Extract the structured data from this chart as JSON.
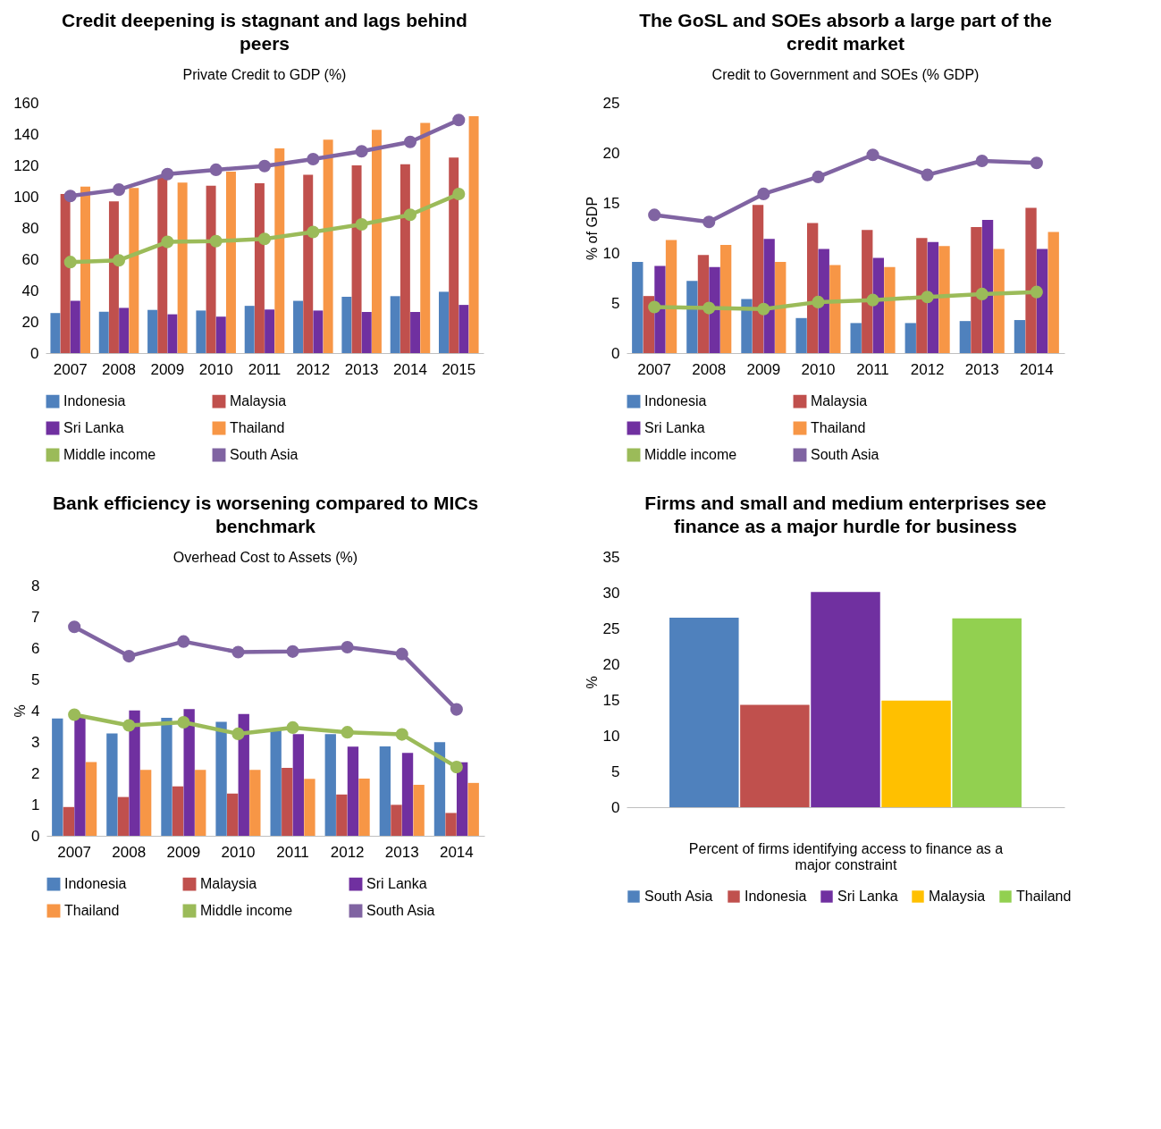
{
  "chart_data": [
    {
      "type": "bar",
      "title": "Credit deepening is stagnant and lags behind peers",
      "subtitle": "Private Credit to GDP (%)",
      "categories": [
        "2007",
        "2008",
        "2009",
        "2010",
        "2011",
        "2012",
        "2013",
        "2014",
        "2015"
      ],
      "series": [
        {
          "name": "Indonesia",
          "color": "#4f81bd",
          "values": [
            25.6,
            26.5,
            27.6,
            27.2,
            30.2,
            33.4,
            36,
            36.4,
            39.2
          ]
        },
        {
          "name": "Malaysia",
          "color": "#c0504d",
          "values": [
            101.7,
            97,
            112,
            107,
            108.6,
            114,
            120,
            120.7,
            125
          ]
        },
        {
          "name": "Sri Lanka",
          "color": "#7030a0",
          "values": [
            33.4,
            28.9,
            24.8,
            23.3,
            27.8,
            27.2,
            26.3,
            26.3,
            30.8
          ]
        },
        {
          "name": "Thailand",
          "color": "#f79646",
          "values": [
            106.5,
            105.6,
            109,
            116,
            130.8,
            136.4,
            142.7,
            147.2,
            151.5
          ]
        },
        {
          "name": "Middle income",
          "type": "line",
          "color": "#9bbb59",
          "values": [
            58.2,
            59.3,
            71.1,
            71.6,
            73,
            77.4,
            82.3,
            88.4,
            101.7
          ]
        },
        {
          "name": "South Asia",
          "type": "line",
          "color": "#8064a2",
          "values": [
            100.4,
            104.5,
            114.4,
            117.2,
            119.6,
            124,
            129,
            135,
            149
          ]
        }
      ],
      "ylim": [
        0,
        160
      ],
      "yticks": [
        0,
        20,
        40,
        60,
        80,
        100,
        120,
        140,
        160
      ],
      "legend": "bottom",
      "marker": "circle"
    },
    {
      "type": "bar",
      "title": "The GoSL and SOEs absorb a large part of the credit market",
      "subtitle": "Credit to Government and SOEs (% GDP)",
      "ylabel": "% of GDP",
      "categories": [
        "2007",
        "2008",
        "2009",
        "2010",
        "2011",
        "2012",
        "2013",
        "2014"
      ],
      "series": [
        {
          "name": "Indonesia",
          "color": "#4f81bd",
          "values": [
            9.1,
            7.2,
            5.4,
            3.5,
            3.0,
            3.0,
            3.2,
            3.3
          ]
        },
        {
          "name": "Malaysia",
          "color": "#c0504d",
          "values": [
            5.7,
            9.8,
            14.8,
            13.0,
            12.3,
            11.5,
            12.6,
            14.5
          ]
        },
        {
          "name": "Sri Lanka",
          "color": "#7030a0",
          "values": [
            8.7,
            8.6,
            11.4,
            10.4,
            9.5,
            11.1,
            13.3,
            10.4
          ]
        },
        {
          "name": "Thailand",
          "color": "#f79646",
          "values": [
            11.3,
            10.8,
            9.1,
            8.8,
            8.6,
            10.7,
            10.4,
            12.1
          ]
        },
        {
          "name": "Middle income",
          "type": "line",
          "color": "#9bbb59",
          "values": [
            4.6,
            4.5,
            4.4,
            5.1,
            5.3,
            5.6,
            5.9,
            6.1
          ]
        },
        {
          "name": "South Asia",
          "type": "line",
          "color": "#8064a2",
          "values": [
            13.8,
            13.1,
            15.9,
            17.6,
            19.8,
            17.8,
            19.2,
            19.0
          ]
        }
      ],
      "ylim": [
        0,
        25
      ],
      "yticks": [
        0,
        5,
        10,
        15,
        20,
        25
      ],
      "legend": "bottom",
      "marker": "circle"
    },
    {
      "type": "bar",
      "title": "Bank efficiency is worsening compared to MICs benchmark",
      "subtitle": "Overhead Cost to Assets (%)",
      "ylabel": "%",
      "categories": [
        "2007",
        "2008",
        "2009",
        "2010",
        "2011",
        "2012",
        "2013",
        "2014"
      ],
      "series": [
        {
          "name": "Indonesia",
          "color": "#4f81bd",
          "values": [
            3.75,
            3.27,
            3.77,
            3.64,
            3.4,
            3.25,
            2.86,
            2.99
          ]
        },
        {
          "name": "Malaysia",
          "color": "#c0504d",
          "values": [
            0.92,
            1.24,
            1.58,
            1.35,
            2.17,
            1.32,
            0.99,
            0.73
          ]
        },
        {
          "name": "Sri Lanka",
          "color": "#7030a0",
          "values": [
            3.85,
            4.01,
            4.05,
            3.89,
            3.25,
            2.85,
            2.65,
            2.35
          ]
        },
        {
          "name": "Thailand",
          "color": "#f79646",
          "values": [
            2.36,
            2.11,
            2.11,
            2.11,
            1.82,
            1.83,
            1.63,
            1.69
          ]
        },
        {
          "name": "Middle income",
          "type": "line",
          "color": "#9bbb59",
          "values": [
            3.87,
            3.53,
            3.63,
            3.26,
            3.46,
            3.31,
            3.24,
            2.2
          ]
        },
        {
          "name": "South Asia",
          "type": "line",
          "color": "#8064a2",
          "values": [
            6.68,
            5.74,
            6.21,
            5.87,
            5.89,
            6.03,
            5.81,
            4.04
          ]
        }
      ],
      "ylim": [
        0,
        8
      ],
      "yticks": [
        0,
        1,
        2,
        3,
        4,
        5,
        6,
        7,
        8
      ],
      "legend": "bottom",
      "marker": "circle"
    },
    {
      "type": "bar",
      "title": "Firms and small and medium enterprises see finance as a major hurdle for business",
      "ylabel": "%",
      "xlabel": "Percent of firms identifying access to finance as a major constraint",
      "categories": [
        null
      ],
      "series": [
        {
          "name": "South Asia",
          "color": "#4f81bd",
          "values": [
            26.5
          ]
        },
        {
          "name": "Indonesia",
          "color": "#c0504d",
          "values": [
            14.3
          ]
        },
        {
          "name": "Sri Lanka",
          "color": "#7030a0",
          "values": [
            30.1
          ]
        },
        {
          "name": "Malaysia",
          "color": "#ffc000",
          "values": [
            14.9
          ]
        },
        {
          "name": "Thailand",
          "color": "#92d050",
          "values": [
            26.4
          ]
        }
      ],
      "ylim": [
        0,
        35
      ],
      "yticks": [
        0,
        5,
        10,
        15,
        20,
        25,
        30,
        35
      ],
      "legend": "bottom"
    }
  ]
}
